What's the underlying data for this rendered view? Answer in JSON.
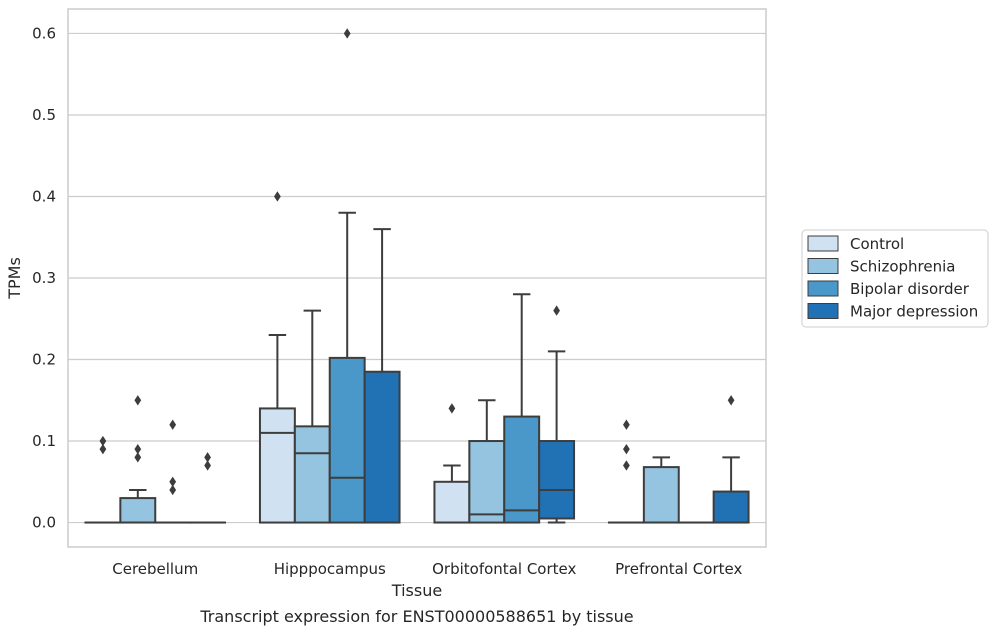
{
  "chart_data": {
    "type": "box",
    "caption": "Transcript expression for ENST00000588651 by tissue",
    "xlabel": "Tissue",
    "ylabel": "TPMs",
    "ylim": [
      -0.03,
      0.63
    ],
    "yticks": [
      0.0,
      0.1,
      0.2,
      0.3,
      0.4,
      0.5,
      0.6
    ],
    "ytick_labels": [
      "0.0",
      "0.1",
      "0.2",
      "0.3",
      "0.4",
      "0.5",
      "0.6"
    ],
    "categories": [
      "Cerebellum",
      "Hipppocampus",
      "Orbitofontal Cortex",
      "Prefrontal Cortex"
    ],
    "legend_position": "right",
    "grid": "horizontal",
    "series": [
      {
        "name": "Control",
        "color": "#d0e1f2",
        "boxes": [
          {
            "q1": 0.0,
            "median": 0.0,
            "q3": 0.0,
            "whisker_low": 0.0,
            "whisker_high": 0.0,
            "outliers": [
              0.1,
              0.09
            ]
          },
          {
            "q1": 0.0,
            "median": 0.11,
            "q3": 0.14,
            "whisker_low": 0.0,
            "whisker_high": 0.23,
            "outliers": [
              0.4
            ]
          },
          {
            "q1": 0.0,
            "median": 0.0,
            "q3": 0.05,
            "whisker_low": 0.0,
            "whisker_high": 0.07,
            "outliers": [
              0.14
            ]
          },
          {
            "q1": 0.0,
            "median": 0.0,
            "q3": 0.0,
            "whisker_low": 0.0,
            "whisker_high": 0.0,
            "outliers": [
              0.12,
              0.09,
              0.07
            ]
          }
        ]
      },
      {
        "name": "Schizophrenia",
        "color": "#94c4df",
        "boxes": [
          {
            "q1": 0.0,
            "median": 0.0,
            "q3": 0.03,
            "whisker_low": 0.0,
            "whisker_high": 0.04,
            "outliers": [
              0.15,
              0.09,
              0.08
            ]
          },
          {
            "q1": 0.0,
            "median": 0.085,
            "q3": 0.118,
            "whisker_low": 0.0,
            "whisker_high": 0.26,
            "outliers": []
          },
          {
            "q1": 0.0,
            "median": 0.01,
            "q3": 0.1,
            "whisker_low": 0.0,
            "whisker_high": 0.15,
            "outliers": []
          },
          {
            "q1": 0.0,
            "median": 0.0,
            "q3": 0.068,
            "whisker_low": 0.0,
            "whisker_high": 0.08,
            "outliers": []
          }
        ]
      },
      {
        "name": "Bipolar disorder",
        "color": "#4a98c9",
        "boxes": [
          {
            "q1": 0.0,
            "median": 0.0,
            "q3": 0.0,
            "whisker_low": 0.0,
            "whisker_high": 0.0,
            "outliers": [
              0.12,
              0.05,
              0.04
            ]
          },
          {
            "q1": 0.0,
            "median": 0.055,
            "q3": 0.202,
            "whisker_low": 0.0,
            "whisker_high": 0.38,
            "outliers": [
              0.6
            ]
          },
          {
            "q1": 0.0,
            "median": 0.015,
            "q3": 0.13,
            "whisker_low": 0.0,
            "whisker_high": 0.28,
            "outliers": []
          },
          {
            "q1": 0.0,
            "median": 0.0,
            "q3": 0.0,
            "whisker_low": 0.0,
            "whisker_high": 0.0,
            "outliers": []
          }
        ]
      },
      {
        "name": "Major depression",
        "color": "#2171b5",
        "boxes": [
          {
            "q1": 0.0,
            "median": 0.0,
            "q3": 0.0,
            "whisker_low": 0.0,
            "whisker_high": 0.0,
            "outliers": [
              0.08,
              0.07
            ]
          },
          {
            "q1": 0.0,
            "median": 0.0,
            "q3": 0.185,
            "whisker_low": 0.0,
            "whisker_high": 0.36,
            "outliers": []
          },
          {
            "q1": 0.005,
            "median": 0.04,
            "q3": 0.1,
            "whisker_low": 0.0,
            "whisker_high": 0.21,
            "outliers": [
              0.26
            ]
          },
          {
            "q1": 0.0,
            "median": 0.0,
            "q3": 0.038,
            "whisker_low": 0.0,
            "whisker_high": 0.08,
            "outliers": [
              0.15
            ]
          }
        ]
      }
    ]
  }
}
